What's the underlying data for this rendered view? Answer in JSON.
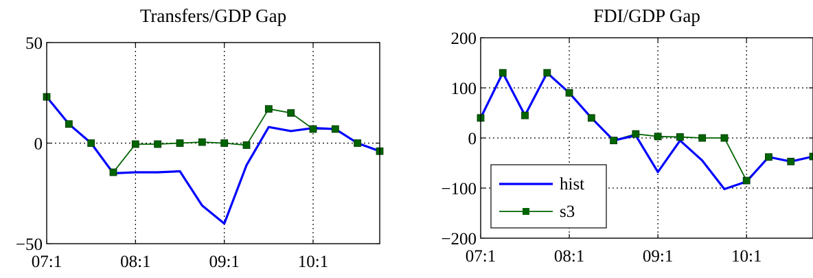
{
  "chart_data": [
    {
      "type": "line",
      "title": "Transfers/GDP Gap",
      "xlabel": "",
      "ylabel": "",
      "x": [
        0,
        1,
        2,
        3,
        4,
        5,
        6,
        7,
        8,
        9,
        10,
        11,
        12,
        13,
        14,
        15
      ],
      "xlim": [
        0,
        15
      ],
      "ylim": [
        -50,
        50
      ],
      "xticks": [
        {
          "x": 0,
          "label": "07:1"
        },
        {
          "x": 4,
          "label": "08:1"
        },
        {
          "x": 8,
          "label": "09:1"
        },
        {
          "x": 12,
          "label": "10:1"
        }
      ],
      "yticks": [
        {
          "y": 50,
          "label": "50"
        },
        {
          "y": 0,
          "label": "0"
        },
        {
          "y": -50,
          "label": "−50"
        }
      ],
      "grid": true,
      "legend": null,
      "series": [
        {
          "key": "hist",
          "color": "#0000ff",
          "marker": "none",
          "values": [
            23,
            9.5,
            0,
            -15,
            -14.5,
            -14.5,
            -14,
            -31,
            -40,
            -11,
            8,
            6,
            7.5,
            7,
            0,
            -4
          ]
        },
        {
          "key": "s3",
          "color": "#006400",
          "marker": "square",
          "values": [
            23,
            9.5,
            0,
            -14.5,
            -0.5,
            -0.5,
            0,
            0.5,
            0,
            -1,
            17,
            15,
            7,
            7,
            0,
            -4
          ]
        }
      ]
    },
    {
      "type": "line",
      "title": "FDI/GDP Gap",
      "xlabel": "",
      "ylabel": "",
      "x": [
        0,
        1,
        2,
        3,
        4,
        5,
        6,
        7,
        8,
        9,
        10,
        11,
        12,
        13,
        14,
        15
      ],
      "xlim": [
        0,
        15
      ],
      "ylim": [
        -200,
        200
      ],
      "xticks": [
        {
          "x": 0,
          "label": "07:1"
        },
        {
          "x": 4,
          "label": "08:1"
        },
        {
          "x": 8,
          "label": "09:1"
        },
        {
          "x": 12,
          "label": "10:1"
        }
      ],
      "yticks": [
        {
          "y": 200,
          "label": "200"
        },
        {
          "y": 100,
          "label": "100"
        },
        {
          "y": 0,
          "label": "0"
        },
        {
          "y": -100,
          "label": "−100"
        },
        {
          "y": -200,
          "label": "−200"
        }
      ],
      "grid": true,
      "legend": {
        "position": "bottom-left",
        "entries": [
          "hist",
          "s3"
        ]
      },
      "series": [
        {
          "name": "hist",
          "color": "#0000ff",
          "marker": "none",
          "values": [
            40,
            130,
            45,
            130,
            90,
            40,
            -5,
            5,
            -68,
            -5,
            -45,
            -102,
            -87,
            -38,
            -47,
            -37
          ]
        },
        {
          "name": "s3",
          "color": "#006400",
          "marker": "square",
          "values": [
            40,
            130,
            45,
            130,
            90,
            40,
            -5,
            8,
            3,
            2,
            0,
            0,
            -85,
            -38,
            -47,
            -37
          ]
        }
      ]
    }
  ]
}
